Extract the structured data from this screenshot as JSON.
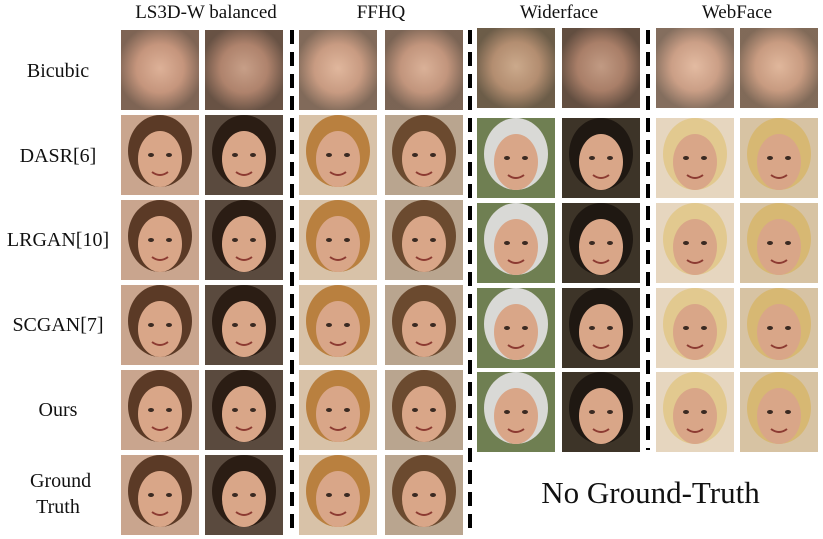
{
  "columns": [
    "LS3D-W balanced",
    "FFHQ",
    "Widerface",
    "WebFace"
  ],
  "rows": [
    "Bicubic",
    "DASR[6]",
    "LRGAN[10]",
    "SCGAN[7]",
    "Ours",
    "Ground Truth"
  ],
  "note": "No Ground-Truth"
}
